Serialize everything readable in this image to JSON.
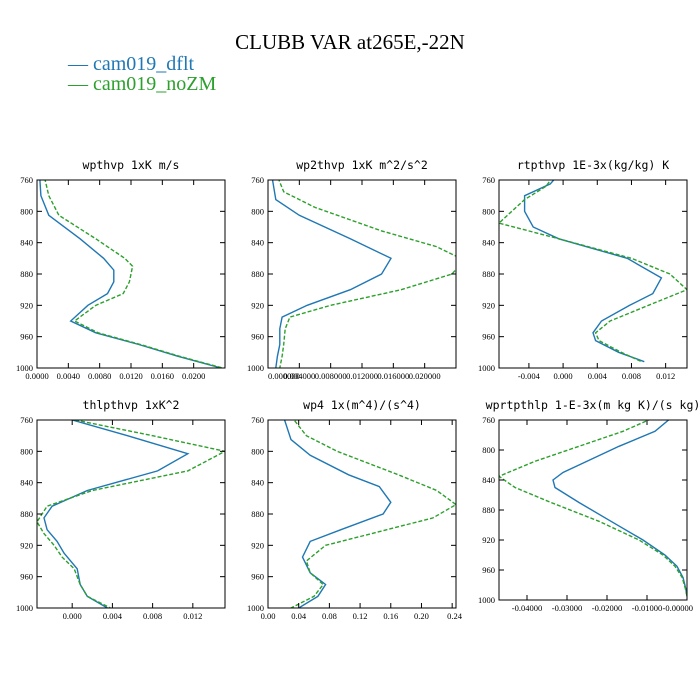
{
  "figure_title": "CLUBB VAR at265E,-22N",
  "legend": [
    {
      "label": "— cam019_dflt",
      "color": "#1f77b4",
      "dash": ""
    },
    {
      "label": "— cam019_noZM",
      "color": "#2ca02c",
      "dash": "4,2"
    }
  ],
  "chart_data": [
    {
      "type": "line",
      "title": "wpthvp   1xK m/s",
      "xlim": [
        0,
        0.024
      ],
      "ylim": [
        760,
        1000
      ],
      "xticks": [
        "0.0000",
        "0.0040",
        "0.0080",
        "0.0120",
        "0.0160",
        "0.0200"
      ],
      "xtick_values": [
        0,
        0.004,
        0.008,
        0.012,
        0.016,
        0.02
      ],
      "yticks": [
        760,
        800,
        840,
        880,
        920,
        960,
        1000
      ],
      "series": [
        {
          "name": "cam019_dflt",
          "p": [
            750,
            780,
            805,
            835,
            860,
            875,
            890,
            905,
            920,
            940,
            955,
            970,
            985,
            1000
          ],
          "values": [
            0.0003,
            0.0005,
            0.0015,
            0.0055,
            0.0085,
            0.0098,
            0.0098,
            0.009,
            0.0065,
            0.0043,
            0.0075,
            0.013,
            0.018,
            0.0235
          ]
        },
        {
          "name": "cam019_noZM",
          "p": [
            750,
            780,
            805,
            835,
            860,
            870,
            890,
            905,
            920,
            940,
            955,
            970,
            985,
            1000
          ],
          "values": [
            0.0008,
            0.0015,
            0.0028,
            0.0075,
            0.0112,
            0.0122,
            0.0118,
            0.011,
            0.0075,
            0.0048,
            0.0078,
            0.0132,
            0.0182,
            0.0237
          ]
        }
      ]
    },
    {
      "type": "line",
      "title": "wp2thvp   1xK m^2/s^2",
      "xlim": [
        0,
        0.024
      ],
      "ylim": [
        760,
        1000
      ],
      "xticks": [
        "0.000000",
        "0.004000",
        "0.008000",
        "0.012000",
        "0.016000",
        "0.020000"
      ],
      "xtick_values": [
        0,
        0.004,
        0.008,
        0.012,
        0.016,
        0.02
      ],
      "yticks": [
        760,
        800,
        840,
        880,
        920,
        960,
        1000
      ],
      "series": [
        {
          "name": "cam019_dflt",
          "p": [
            755,
            785,
            805,
            835,
            860,
            880,
            900,
            920,
            935,
            950,
            970,
            985,
            1000
          ],
          "values": [
            0.0005,
            0.001,
            0.004,
            0.0105,
            0.0157,
            0.0145,
            0.0105,
            0.005,
            0.0018,
            0.0015,
            0.0015,
            0.0012,
            0.001
          ]
        },
        {
          "name": "cam019_noZM",
          "p": [
            750,
            775,
            795,
            825,
            845,
            862,
            880,
            900,
            920,
            935,
            950,
            970,
            985,
            1000
          ],
          "values": [
            0.001,
            0.002,
            0.006,
            0.0145,
            0.0215,
            0.025,
            0.0235,
            0.017,
            0.008,
            0.0028,
            0.0022,
            0.002,
            0.0018,
            0.0015
          ]
        }
      ]
    },
    {
      "type": "line",
      "title": "rtpthvp   1E-3x(kg/kg) K",
      "xlim": [
        -0.0075,
        0.0145
      ],
      "ylim": [
        760,
        1000
      ],
      "xticks": [
        "-0.004",
        "0.000",
        "0.004",
        "0.008",
        "0.012"
      ],
      "xtick_values": [
        -0.004,
        0,
        0.004,
        0.008,
        0.012
      ],
      "yticks": [
        760,
        800,
        840,
        880,
        920,
        960,
        1000
      ],
      "series": [
        {
          "name": "cam019_dflt",
          "p": [
            750,
            765,
            780,
            800,
            820,
            835,
            860,
            885,
            905,
            920,
            940,
            955,
            965,
            980,
            992
          ],
          "values": [
            -0.0003,
            -0.0015,
            -0.0045,
            -0.0045,
            -0.0035,
            -0.0005,
            0.0075,
            0.0115,
            0.0105,
            0.0078,
            0.0045,
            0.0035,
            0.0038,
            0.0065,
            0.0095
          ]
        },
        {
          "name": "cam019_noZM",
          "p": [
            750,
            768,
            785,
            800,
            815,
            835,
            860,
            880,
            900,
            920,
            940,
            955,
            965,
            980,
            992
          ],
          "values": [
            -0.0008,
            -0.002,
            -0.0045,
            -0.006,
            -0.0075,
            -0.0005,
            0.008,
            0.0125,
            0.0145,
            0.01,
            0.0055,
            0.0038,
            0.0042,
            0.0068,
            0.0092
          ]
        }
      ]
    },
    {
      "type": "line",
      "title": "thlpthvp   1xK^2",
      "xlim": [
        -0.0035,
        0.0152
      ],
      "ylim": [
        760,
        1000
      ],
      "xticks": [
        "0.000",
        "0.004",
        "0.008",
        "0.012"
      ],
      "xtick_values": [
        0,
        0.004,
        0.008,
        0.012
      ],
      "yticks": [
        760,
        800,
        840,
        880,
        920,
        960,
        1000
      ],
      "series": [
        {
          "name": "cam019_dflt",
          "p": [
            760,
            780,
            803,
            825,
            850,
            870,
            885,
            900,
            915,
            930,
            950,
            970,
            985,
            1000
          ],
          "values": [
            0.0,
            0.0055,
            0.0115,
            0.0085,
            0.0015,
            -0.002,
            -0.0028,
            -0.0025,
            -0.0015,
            -0.0008,
            0.0005,
            0.0008,
            0.0015,
            0.0035
          ]
        },
        {
          "name": "cam019_noZM",
          "p": [
            760,
            780,
            800,
            825,
            850,
            870,
            890,
            905,
            920,
            935,
            950,
            970,
            985,
            1000
          ],
          "values": [
            0.0003,
            0.008,
            0.0152,
            0.0115,
            0.002,
            -0.0025,
            -0.0035,
            -0.0028,
            -0.0018,
            -0.001,
            0.0002,
            0.0008,
            0.0015,
            0.0038
          ]
        }
      ]
    },
    {
      "type": "line",
      "title": "wp4   1x(m^4)/(s^4)",
      "xlim": [
        0,
        0.245
      ],
      "ylim": [
        760,
        1000
      ],
      "xticks": [
        "0.00",
        "0.04",
        "0.08",
        "0.12",
        "0.16",
        "0.20",
        "0.24"
      ],
      "xtick_values": [
        0,
        0.04,
        0.08,
        0.12,
        0.16,
        0.2,
        0.24
      ],
      "yticks": [
        760,
        800,
        840,
        880,
        920,
        960,
        1000
      ],
      "series": [
        {
          "name": "cam019_dflt",
          "p": [
            755,
            785,
            805,
            830,
            845,
            865,
            880,
            900,
            915,
            935,
            955,
            970,
            985,
            1000
          ],
          "values": [
            0.02,
            0.03,
            0.055,
            0.105,
            0.145,
            0.16,
            0.15,
            0.095,
            0.055,
            0.045,
            0.055,
            0.075,
            0.065,
            0.04
          ]
        },
        {
          "name": "cam019_noZM",
          "p": [
            755,
            780,
            800,
            830,
            850,
            868,
            885,
            905,
            920,
            940,
            955,
            970,
            985,
            1000
          ],
          "values": [
            0.03,
            0.05,
            0.09,
            0.17,
            0.22,
            0.245,
            0.215,
            0.135,
            0.075,
            0.05,
            0.055,
            0.072,
            0.06,
            0.03
          ]
        }
      ]
    },
    {
      "type": "line",
      "title": "wprtpthlp   1-E-3x(m kg K)/(s kg)",
      "xlim": [
        -0.047,
        0.0
      ],
      "ylim": [
        760,
        1000
      ],
      "xticks": [
        "-0.04000",
        "-0.03000",
        "-0.02000",
        "-0.01000",
        "-0.00000"
      ],
      "xtick_values": [
        -0.04,
        -0.03,
        -0.02,
        -0.01,
        0.0
      ],
      "yticks": [
        760,
        800,
        840,
        880,
        920,
        960,
        1000
      ],
      "series": [
        {
          "name": "cam019_dflt",
          "p": [
            755,
            775,
            795,
            815,
            830,
            840,
            850,
            870,
            895,
            920,
            940,
            955,
            970,
            985,
            995
          ],
          "values": [
            -0.0035,
            -0.008,
            -0.017,
            -0.025,
            -0.031,
            -0.0335,
            -0.033,
            -0.027,
            -0.019,
            -0.011,
            -0.0055,
            -0.0025,
            -0.001,
            -0.0003,
            0.0
          ]
        },
        {
          "name": "cam019_noZM",
          "p": [
            755,
            775,
            795,
            815,
            835,
            850,
            870,
            895,
            920,
            940,
            955,
            970,
            985,
            995
          ],
          "values": [
            -0.0075,
            -0.016,
            -0.027,
            -0.038,
            -0.047,
            -0.043,
            -0.034,
            -0.022,
            -0.012,
            -0.006,
            -0.003,
            -0.0012,
            -0.0004,
            0.0
          ]
        }
      ]
    }
  ]
}
